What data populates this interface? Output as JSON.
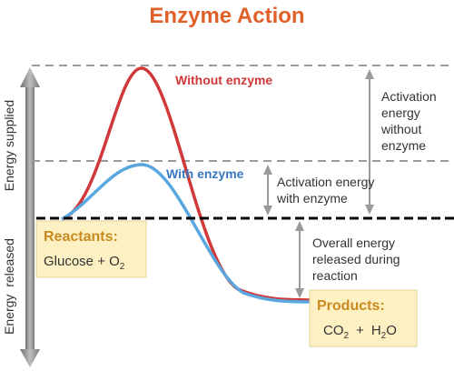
{
  "title": "Enzyme Action",
  "curves": {
    "without_enzyme": {
      "label": "Without enzyme",
      "color": "#d0383a"
    },
    "with_enzyme": {
      "label": "With enzyme",
      "color": "#5aa7e0",
      "label_color": "#3a78c2"
    }
  },
  "axis": {
    "supplied_label": "Energy supplied",
    "released_label": "Energy  released"
  },
  "annotations": {
    "activation_without": [
      "Activation",
      "energy",
      "without",
      "enzyme"
    ],
    "activation_with": [
      "Activation energy",
      "with enzyme"
    ],
    "overall": [
      "Overall energy",
      "released during",
      "reaction"
    ]
  },
  "reactants": {
    "heading": "Reactants:",
    "formula_main": "Glucose + O",
    "formula_sub": "2"
  },
  "products": {
    "heading": "Products:",
    "co_main": "CO",
    "co_sub": "2",
    "plus": "+",
    "h_main": "H",
    "h_sub": "2",
    "o_tail": "O"
  },
  "colors": {
    "title": "#e0602a",
    "box_fill": "#fdf0c2",
    "box_heading": "#c98a1f",
    "arrow_gray": "#9a9a9a",
    "dashed_gray": "#9b9b9b",
    "baseline": "#000000"
  }
}
